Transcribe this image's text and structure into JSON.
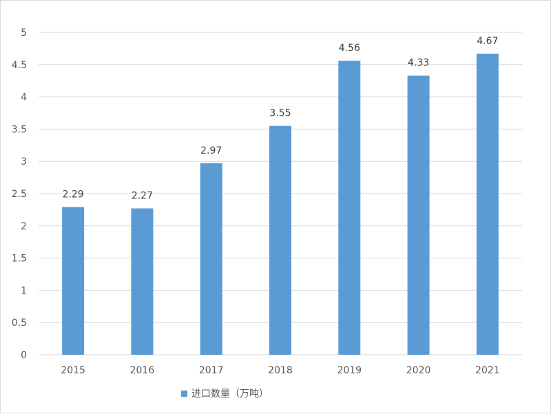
{
  "chart_data": {
    "type": "bar",
    "categories": [
      "2015",
      "2016",
      "2017",
      "2018",
      "2019",
      "2020",
      "2021"
    ],
    "series": [
      {
        "name": "进口数量（万吨）",
        "values": [
          2.29,
          2.27,
          2.97,
          3.55,
          4.56,
          4.33,
          4.67
        ],
        "color": "#5b9bd5"
      }
    ],
    "data_labels": [
      "2.29",
      "2.27",
      "2.97",
      "3.55",
      "4.56",
      "4.33",
      "4.67"
    ],
    "y_ticks": [
      "0",
      "0.5",
      "1",
      "1.5",
      "2",
      "2.5",
      "3",
      "3.5",
      "4",
      "4.5",
      "5"
    ],
    "ylim": [
      0,
      5
    ],
    "grid": true,
    "legend_position": "bottom-left",
    "title": "",
    "xlabel": "",
    "ylabel": ""
  }
}
